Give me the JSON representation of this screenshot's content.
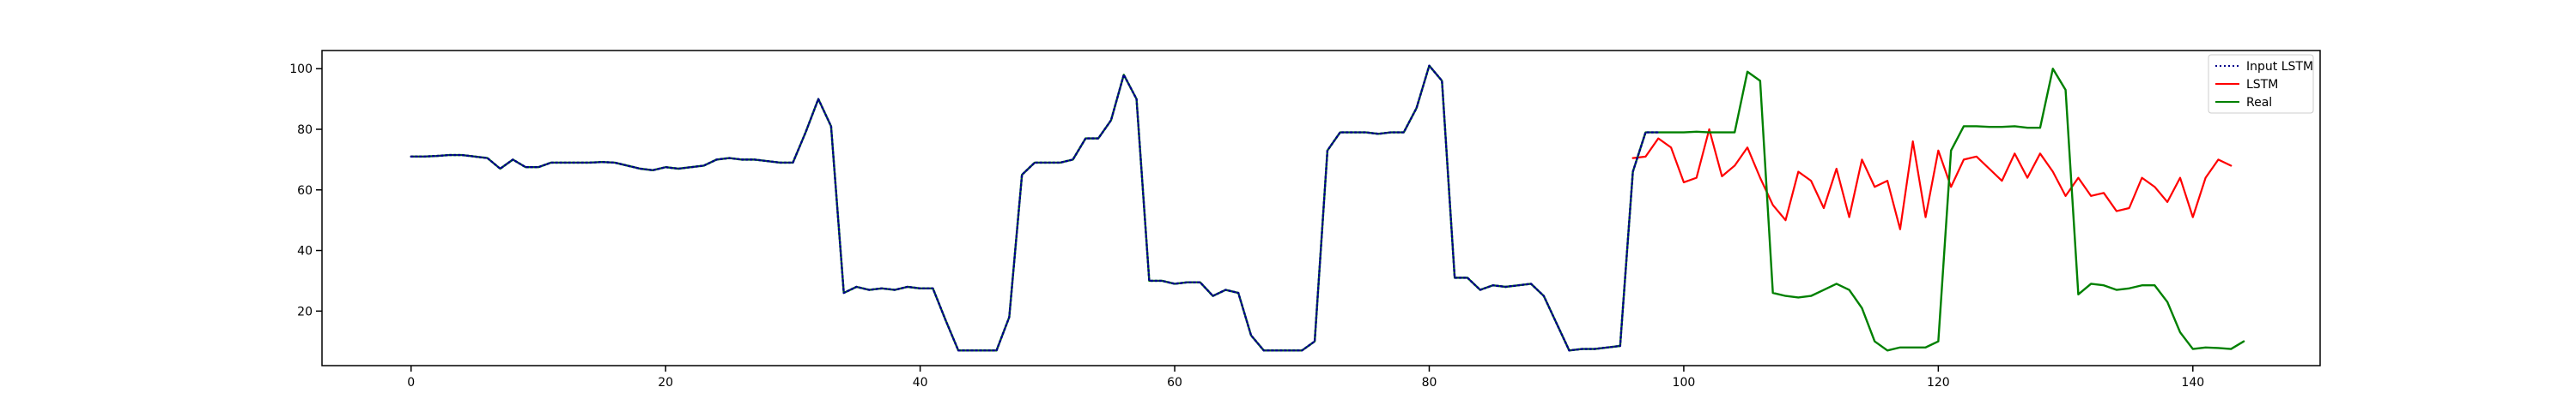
{
  "chart_data": {
    "type": "line",
    "title": "",
    "xlabel": "",
    "ylabel": "",
    "xlim": [
      -7,
      150
    ],
    "ylim": [
      2,
      106
    ],
    "xticks": [
      0,
      20,
      40,
      60,
      80,
      100,
      120,
      140
    ],
    "yticks": [
      20,
      40,
      60,
      80,
      100
    ],
    "grid": false,
    "legend_position": "top-right",
    "series": [
      {
        "name": "Input LSTM",
        "color": "#00008b",
        "style": "dotted",
        "x_start": 0,
        "values": [
          71,
          71,
          71.2,
          71.5,
          71.5,
          71,
          70.5,
          67,
          70,
          67.5,
          67.5,
          69,
          69,
          69,
          69,
          69.2,
          69,
          68,
          67,
          66.5,
          67.5,
          67,
          67.5,
          68,
          70,
          70.5,
          70,
          70,
          69.5,
          69,
          69,
          79,
          90,
          81,
          26,
          28,
          27,
          27.5,
          27,
          28,
          27.5,
          27.5,
          17,
          7,
          7,
          7,
          7,
          18,
          65,
          69,
          69,
          69,
          70,
          77,
          77,
          83,
          98,
          90,
          30,
          30,
          29,
          29.5,
          29.5,
          25,
          27,
          26,
          12,
          7,
          7,
          7,
          7,
          10,
          73,
          79,
          79,
          79,
          78.5,
          79,
          79,
          87,
          101,
          96,
          31,
          31,
          27,
          28.5,
          28,
          28.5,
          29,
          25,
          16,
          7,
          7.5,
          7.5,
          8,
          8.5,
          66,
          79,
          79
        ]
      },
      {
        "name": "LSTM",
        "color": "#ff0000",
        "style": "solid",
        "x_start": 96,
        "values": [
          70.5,
          71,
          77,
          74,
          62.5,
          64,
          80,
          64.5,
          68,
          74,
          64,
          55,
          50,
          66,
          63,
          54,
          67,
          51,
          70,
          61,
          63,
          47,
          76,
          51,
          73,
          61,
          70,
          71,
          67,
          63,
          72,
          64,
          72,
          66,
          58,
          64,
          58,
          59,
          53,
          54,
          64,
          61,
          56,
          64,
          51,
          64,
          70,
          68
        ]
      },
      {
        "name": "Real",
        "color": "#008000",
        "style": "solid",
        "x_start": 0,
        "values": [
          71,
          71,
          71.2,
          71.5,
          71.5,
          71,
          70.5,
          67,
          70,
          67.5,
          67.5,
          69,
          69,
          69,
          69,
          69.2,
          69,
          68,
          67,
          66.5,
          67.5,
          67,
          67.5,
          68,
          70,
          70.5,
          70,
          70,
          69.5,
          69,
          69,
          79,
          90,
          81,
          26,
          28,
          27,
          27.5,
          27,
          28,
          27.5,
          27.5,
          17,
          7,
          7,
          7,
          7,
          18,
          65,
          69,
          69,
          69,
          70,
          77,
          77,
          83,
          98,
          90,
          30,
          30,
          29,
          29.5,
          29.5,
          25,
          27,
          26,
          12,
          7,
          7,
          7,
          7,
          10,
          73,
          79,
          79,
          79,
          78.5,
          79,
          79,
          87,
          101,
          96,
          31,
          31,
          27,
          28.5,
          28,
          28.5,
          29,
          25,
          16,
          7,
          7.5,
          7.5,
          8,
          8.5,
          66,
          79,
          79,
          79,
          79,
          79.2,
          79,
          79,
          79,
          99,
          96,
          26,
          25,
          24.5,
          25,
          27,
          29,
          27,
          21,
          10,
          7,
          8,
          8,
          8,
          10,
          73,
          81,
          81,
          80.8,
          80.8,
          81,
          80.5,
          80.5,
          100,
          93,
          25.5,
          29,
          28.5,
          27,
          27.5,
          28.5,
          28.5,
          23,
          13,
          7.5,
          8,
          7.8,
          7.5,
          10
        ]
      }
    ]
  }
}
